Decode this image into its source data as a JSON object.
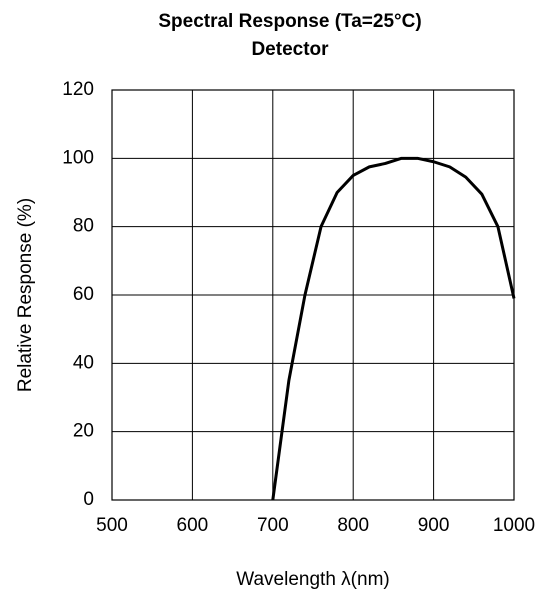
{
  "chart_data": {
    "type": "line",
    "title": "Spectral Response (Ta=25°C)",
    "subtitle": "Detector",
    "x_label": "Wavelength λ(nm)",
    "y_label": "Relative Response (%)",
    "x": [
      700,
      720,
      740,
      760,
      780,
      800,
      820,
      840,
      860,
      880,
      900,
      920,
      940,
      960,
      980,
      1000
    ],
    "series": [
      {
        "name": "Detector",
        "color": "#000000",
        "values": [
          0,
          35,
          60,
          80,
          90,
          95,
          97.5,
          98.5,
          100,
          100,
          99,
          97.5,
          94.5,
          89.5,
          80,
          59
        ]
      }
    ],
    "xlim": [
      500,
      1000
    ],
    "xticks": [
      500,
      600,
      700,
      800,
      900,
      1000
    ],
    "ylim": [
      0,
      120
    ],
    "yticks": [
      0,
      20,
      40,
      60,
      80,
      100,
      120
    ],
    "grid": true
  }
}
